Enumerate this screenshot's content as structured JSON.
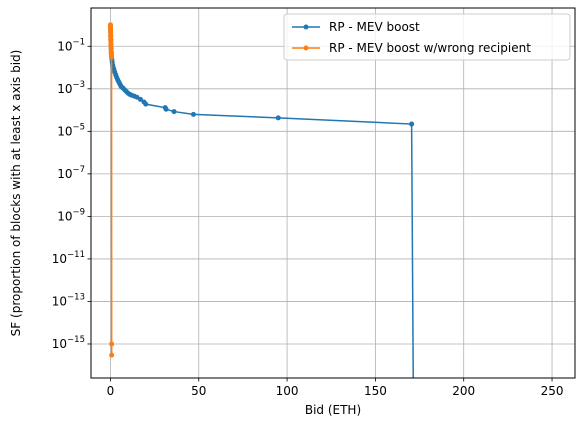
{
  "chart_data": {
    "type": "line",
    "xlabel": "Bid (ETH)",
    "ylabel": "SF (proportion of blocks with at least x axis bid)",
    "xlim": [
      -11,
      263
    ],
    "ylim_log10": [
      -16.6,
      0.8
    ],
    "y_scale": "log",
    "grid": true,
    "legend_position": "top-right",
    "x_ticks": [
      0,
      50,
      100,
      150,
      200,
      250
    ],
    "y_tick_exponents": [
      -15,
      -13,
      -11,
      -9,
      -7,
      -5,
      -3,
      -1
    ],
    "y_tick_base": "10",
    "series": [
      {
        "name": "RP - MEV boost",
        "color": "#1f77b4",
        "points": [
          [
            0.0,
            1.0
          ],
          [
            0.05,
            0.8
          ],
          [
            0.1,
            0.5
          ],
          [
            0.15,
            0.3
          ],
          [
            0.2,
            0.2
          ],
          [
            0.3,
            0.12
          ],
          [
            0.4,
            0.08
          ],
          [
            0.5,
            0.05
          ],
          [
            0.6,
            0.035
          ],
          [
            0.8,
            0.025
          ],
          [
            1.0,
            0.018
          ],
          [
            1.3,
            0.013
          ],
          [
            1.6,
            0.01
          ],
          [
            2.0,
            0.008
          ],
          [
            2.5,
            0.006
          ],
          [
            3.0,
            0.0045
          ],
          [
            3.5,
            0.0035
          ],
          [
            4.0,
            0.0028
          ],
          [
            4.5,
            0.0023
          ],
          [
            5.0,
            0.0019
          ],
          [
            5.5,
            0.0016
          ],
          [
            6.0,
            0.0013
          ],
          [
            7.0,
            0.0011
          ],
          [
            8.0,
            0.0009
          ],
          [
            9.0,
            0.00075
          ],
          [
            10.0,
            0.00062
          ],
          [
            11.0,
            0.00055
          ],
          [
            12.0,
            0.0005
          ],
          [
            13.5,
            0.00045
          ],
          [
            15.0,
            0.0004
          ],
          [
            17.0,
            0.00032
          ],
          [
            19.0,
            0.00024
          ],
          [
            20.0,
            0.00019
          ],
          [
            31.0,
            0.00013
          ],
          [
            31.5,
            0.00011
          ],
          [
            36.0,
            8.5e-05
          ],
          [
            47.0,
            6.3e-05
          ],
          [
            95.0,
            4.3e-05
          ],
          [
            170.5,
            2.2e-05
          ],
          [
            171.5,
            1e-20
          ]
        ]
      },
      {
        "name": "RP - MEV boost w/wrong recipient",
        "color": "#ff7f0e",
        "points": [
          [
            0.0,
            1.0
          ],
          [
            0.02,
            0.9
          ],
          [
            0.04,
            0.8
          ],
          [
            0.06,
            0.7
          ],
          [
            0.08,
            0.6
          ],
          [
            0.1,
            0.5
          ],
          [
            0.12,
            0.42
          ],
          [
            0.15,
            0.35
          ],
          [
            0.18,
            0.28
          ],
          [
            0.2,
            0.22
          ],
          [
            0.25,
            0.16
          ],
          [
            0.3,
            0.12
          ],
          [
            0.35,
            0.09
          ],
          [
            0.4,
            0.07
          ],
          [
            0.45,
            0.055
          ],
          [
            0.5,
            0.045
          ],
          [
            0.55,
            0.038
          ],
          [
            0.6,
            0.033
          ],
          [
            0.65,
            0.03
          ],
          [
            0.7,
            1e-15
          ],
          [
            0.72,
            3e-16
          ]
        ]
      }
    ]
  }
}
